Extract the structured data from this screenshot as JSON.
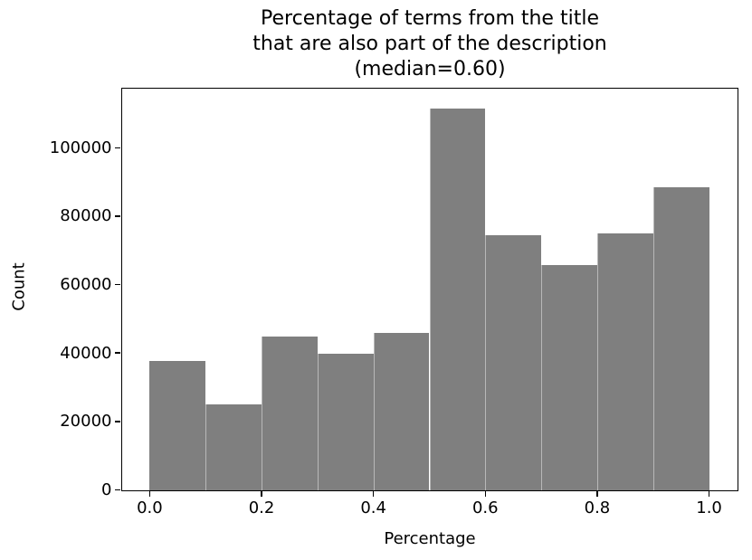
{
  "figure": {
    "title_lines": [
      "Percentage of terms from the title",
      "that are also part of the description",
      "(median=0.60)"
    ],
    "xlabel": "Percentage",
    "ylabel": "Count"
  },
  "chart_data": {
    "type": "bar",
    "subtype": "histogram",
    "title": "Percentage of terms from the title that are also part of the description (median=0.60)",
    "median": 0.6,
    "xlabel": "Percentage",
    "ylabel": "Count",
    "bin_edges": [
      0.0,
      0.1,
      0.2,
      0.3,
      0.4,
      0.5,
      0.6,
      0.7,
      0.8,
      0.9,
      1.0
    ],
    "values": [
      37800,
      25000,
      44900,
      39800,
      45800,
      111500,
      74400,
      65800,
      74900,
      88400
    ],
    "xlim": [
      -0.05,
      1.05
    ],
    "ylim": [
      0,
      117400
    ],
    "xticks": {
      "values": [
        0.0,
        0.2,
        0.4,
        0.6,
        0.8,
        1.0
      ],
      "labels": [
        "0.0",
        "0.2",
        "0.4",
        "0.6",
        "0.8",
        "1.0"
      ]
    },
    "yticks": {
      "values": [
        0,
        20000,
        40000,
        60000,
        80000,
        100000
      ],
      "labels": [
        "0",
        "20000",
        "40000",
        "60000",
        "80000",
        "100000"
      ]
    },
    "bar_color": "#7f7f7f",
    "grid": false,
    "legend": false,
    "background_color": "#ffffff",
    "text_color": "#000000"
  }
}
